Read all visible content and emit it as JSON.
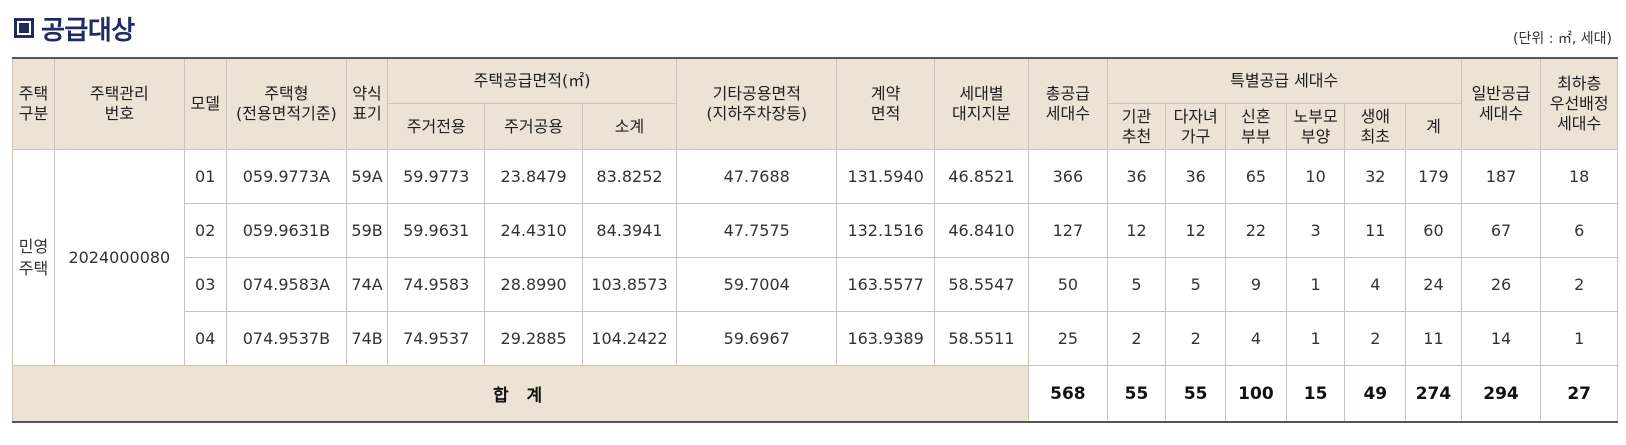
{
  "title": "공급대상",
  "unit": "(단위 : ㎡, 세대)",
  "headers": {
    "type": [
      "주택",
      "구분"
    ],
    "mgmt_no": [
      "주택관리",
      "번호"
    ],
    "model": "모델",
    "house_type": [
      "주택형",
      "(전용면적기준)"
    ],
    "abbr": [
      "약식",
      "표기"
    ],
    "supply_area": "주택공급면적(㎡)",
    "res_exclusive": "주거전용",
    "res_common": "주거공용",
    "subtotal": "소계",
    "other_common": [
      "기타공용면적",
      "(지하주차장등)"
    ],
    "contract_area": [
      "계약",
      "면적"
    ],
    "land_share": [
      "세대별",
      "대지지분"
    ],
    "total_supply": [
      "총공급",
      "세대수"
    ],
    "special_supply": "특별공급 세대수",
    "institution": [
      "기관",
      "추천"
    ],
    "multi_child": [
      "다자녀",
      "가구"
    ],
    "newlywed": [
      "신혼",
      "부부"
    ],
    "elderly_parent": [
      "노부모",
      "부양"
    ],
    "first_life": [
      "생애",
      "최초"
    ],
    "special_sum": "계",
    "general_supply": [
      "일반공급",
      "세대수"
    ],
    "lowest_floor": [
      "최하층",
      "우선배정",
      "세대수"
    ]
  },
  "group": {
    "type": [
      "민영",
      "주택"
    ],
    "mgmt_no": "2024000080"
  },
  "rows": [
    {
      "model": "01",
      "house_type": "059.9773A",
      "abbr": "59A",
      "res_exclusive": "59.9773",
      "res_common": "23.8479",
      "subtotal": "83.8252",
      "other_common": "47.7688",
      "contract_area": "131.5940",
      "land_share": "46.8521",
      "total_supply": "366",
      "institution": "36",
      "multi_child": "36",
      "newlywed": "65",
      "elderly_parent": "10",
      "first_life": "32",
      "special_sum": "179",
      "general_supply": "187",
      "lowest_floor": "18"
    },
    {
      "model": "02",
      "house_type": "059.9631B",
      "abbr": "59B",
      "res_exclusive": "59.9631",
      "res_common": "24.4310",
      "subtotal": "84.3941",
      "other_common": "47.7575",
      "contract_area": "132.1516",
      "land_share": "46.8410",
      "total_supply": "127",
      "institution": "12",
      "multi_child": "12",
      "newlywed": "22",
      "elderly_parent": "3",
      "first_life": "11",
      "special_sum": "60",
      "general_supply": "67",
      "lowest_floor": "6"
    },
    {
      "model": "03",
      "house_type": "074.9583A",
      "abbr": "74A",
      "res_exclusive": "74.9583",
      "res_common": "28.8990",
      "subtotal": "103.8573",
      "other_common": "59.7004",
      "contract_area": "163.5577",
      "land_share": "58.5547",
      "total_supply": "50",
      "institution": "5",
      "multi_child": "5",
      "newlywed": "9",
      "elderly_parent": "1",
      "first_life": "4",
      "special_sum": "24",
      "general_supply": "26",
      "lowest_floor": "2"
    },
    {
      "model": "04",
      "house_type": "074.9537B",
      "abbr": "74B",
      "res_exclusive": "74.9537",
      "res_common": "29.2885",
      "subtotal": "104.2422",
      "other_common": "59.6967",
      "contract_area": "163.9389",
      "land_share": "58.5511",
      "total_supply": "25",
      "institution": "2",
      "multi_child": "2",
      "newlywed": "4",
      "elderly_parent": "1",
      "first_life": "2",
      "special_sum": "11",
      "general_supply": "14",
      "lowest_floor": "1"
    }
  ],
  "total": {
    "label": "합 계",
    "total_supply": "568",
    "institution": "55",
    "multi_child": "55",
    "newlywed": "100",
    "elderly_parent": "15",
    "first_life": "49",
    "special_sum": "274",
    "general_supply": "294",
    "lowest_floor": "27"
  },
  "colors": {
    "header_bg": "#ece3d5",
    "title": "#1f2b5e",
    "border": "#c9c3ba"
  }
}
